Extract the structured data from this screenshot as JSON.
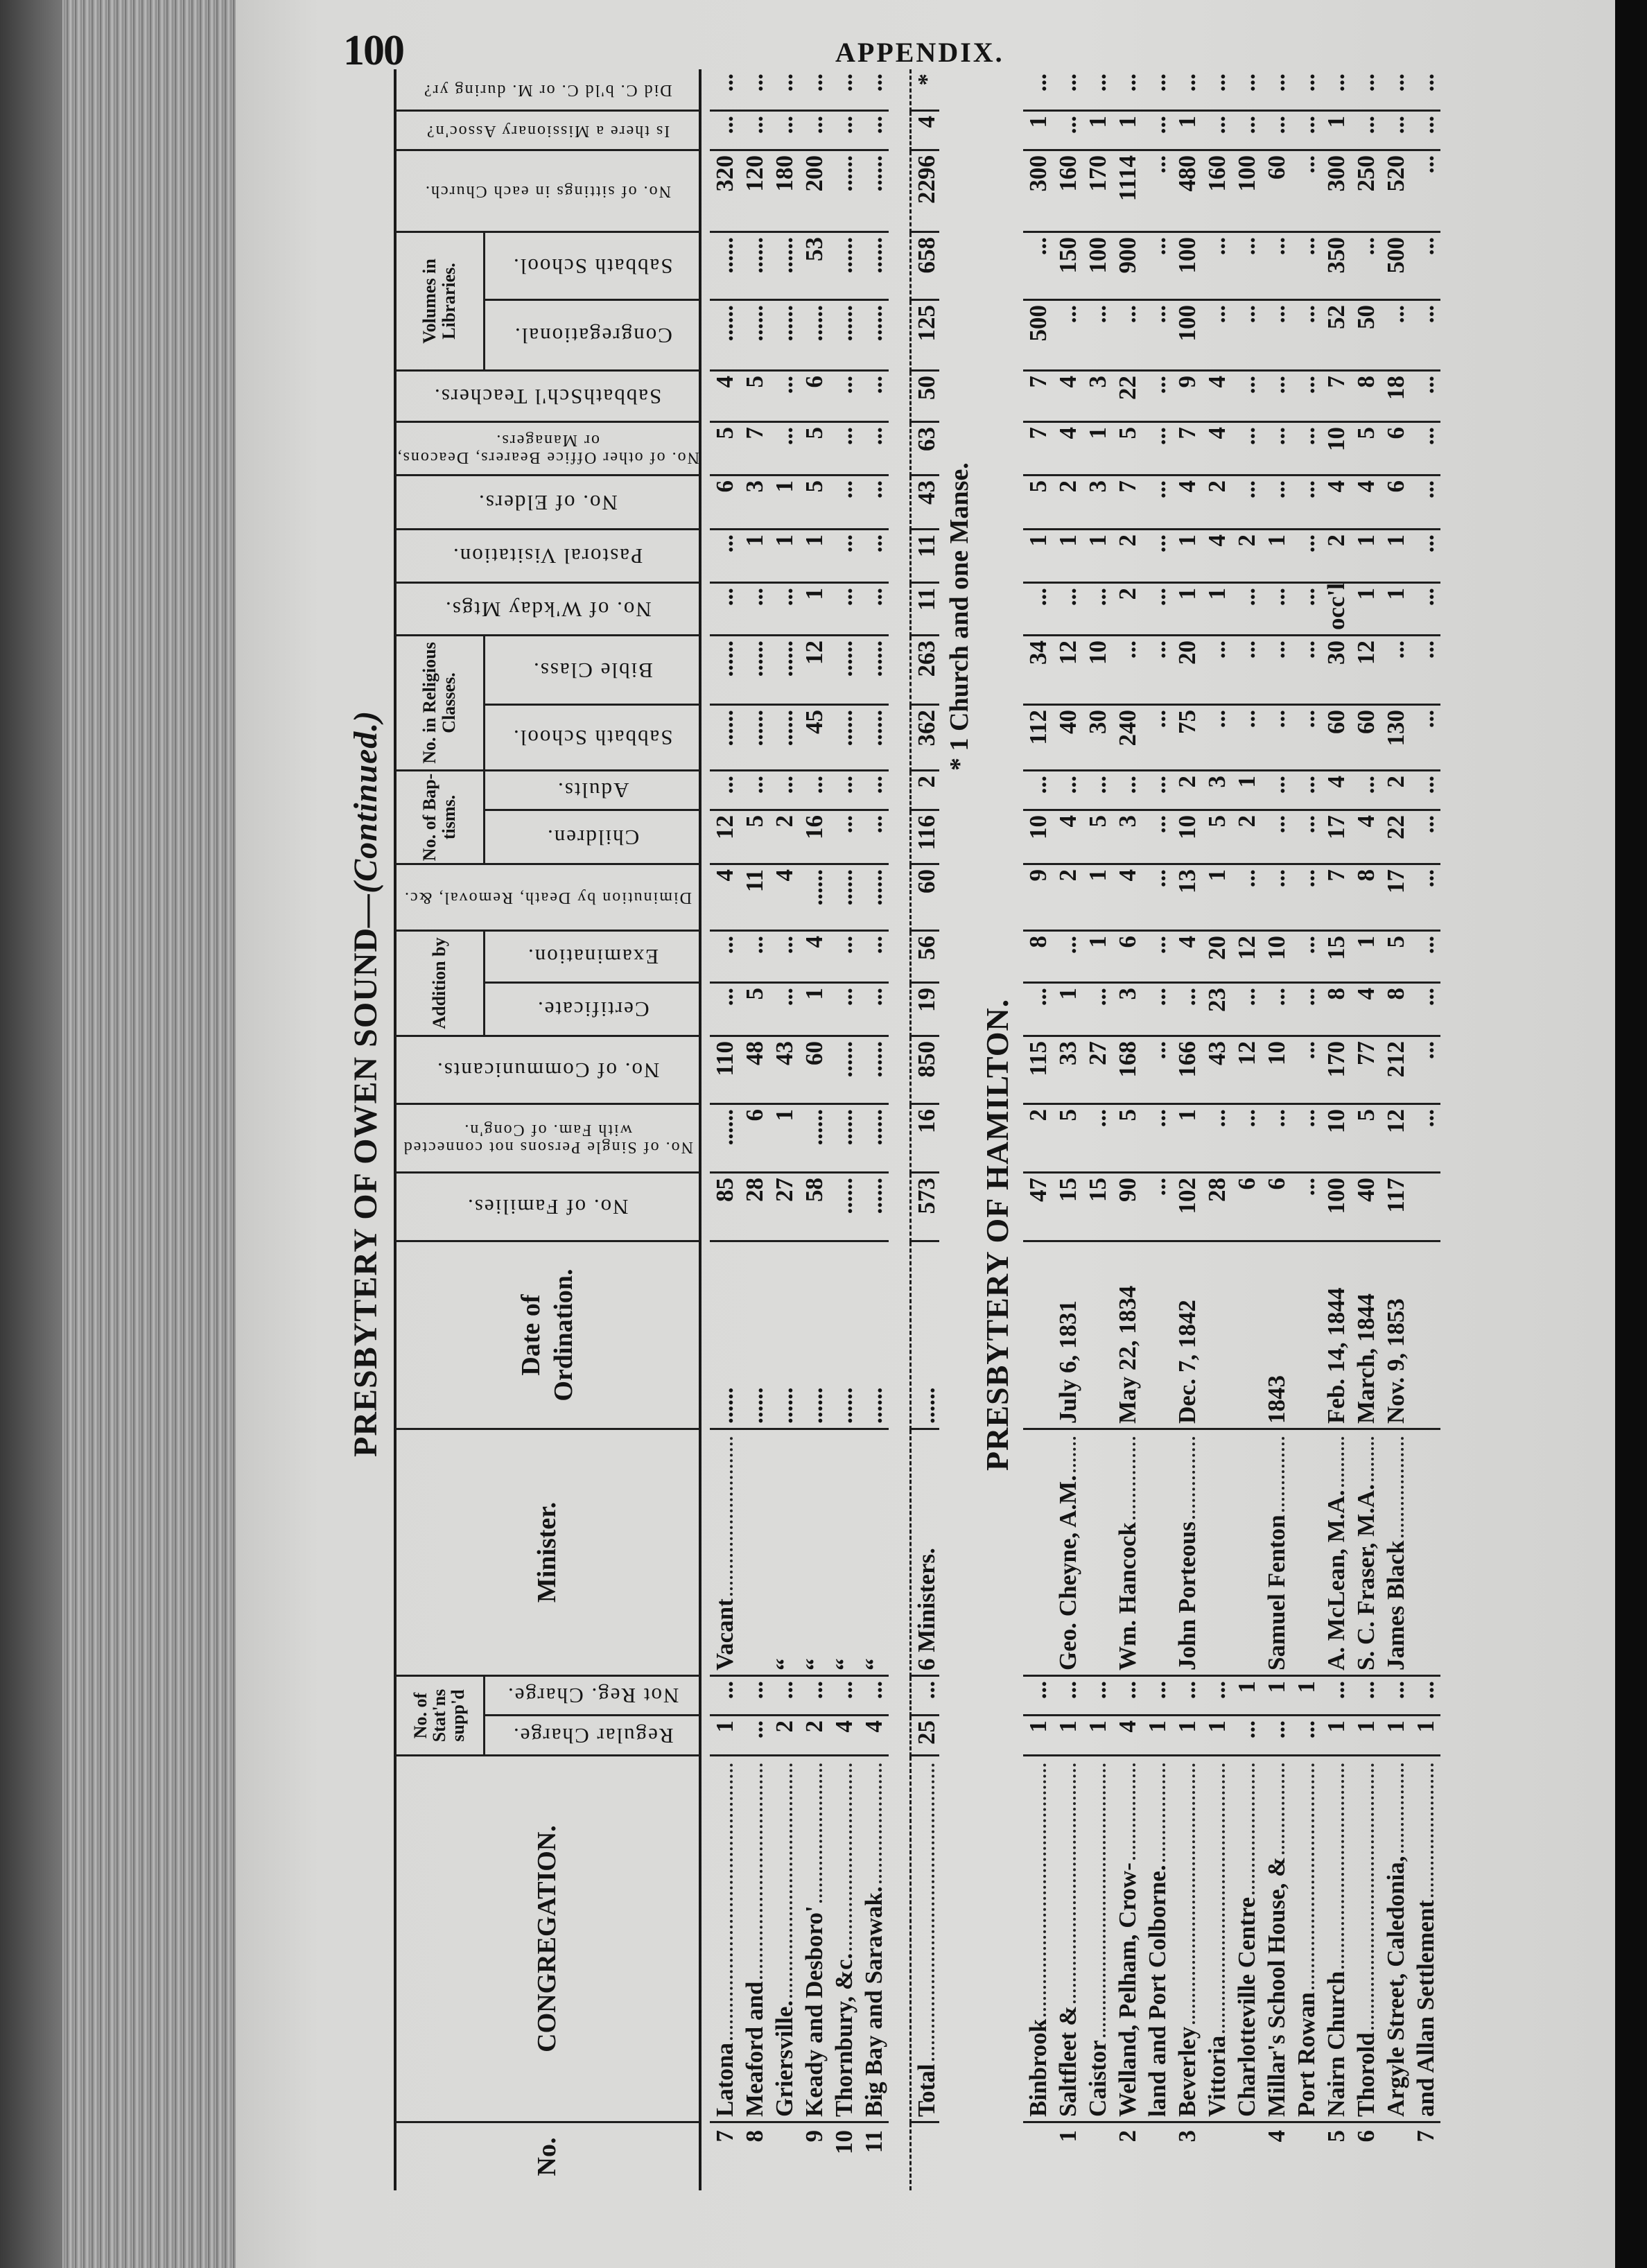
{
  "page": {
    "number": "100",
    "running_head": "APPENDIX."
  },
  "header": {
    "columns": [
      "No.",
      "CONGREGATION.",
      "Regular Charge.",
      "Not Reg. Charge.",
      "Minister.",
      "Date of Ordination.",
      "No. of Families.",
      "No. of Single Persons not connected with Fam. of Cong'n.",
      "No. of Communicants.",
      "Certificate.",
      "Examination.",
      "Diminution by Death, Removal, &c.",
      "Children.",
      "Adults.",
      "Sabbath School.",
      "Bible Class.",
      "No. of W'kday Mtgs.",
      "Pastoral Visitation.",
      "No. of Elders.",
      "No. of other Office Bearers, Deacons, or Managers.",
      "SabbathSch'l Teachers.",
      "Congregational.",
      "Sabbath School.",
      "No. of sittings in each Church.",
      "Is there a Missionary Assoc'n?",
      "Did C. b'ld C. or M. during yr?"
    ],
    "groups": [
      {
        "label": "No. of Stat'ns supp'd",
        "cols": [
          2,
          3
        ]
      },
      {
        "label": "Addition by",
        "cols": [
          9,
          10
        ]
      },
      {
        "label": "No. of Bap-tisms.",
        "cols": [
          12,
          13
        ]
      },
      {
        "label": "No. in Religious Classes.",
        "cols": [
          14,
          15
        ]
      },
      {
        "label": "Volumes in Libraries.",
        "cols": [
          21,
          22
        ]
      }
    ]
  },
  "owen_sound": {
    "title": "PRESBYTERY OF OWEN SOUND",
    "title_suffix": "—(Continued.)",
    "rows": [
      [
        "7",
        "Latona",
        "1",
        "...",
        "Vacant",
        "......",
        "85",
        "......",
        "110",
        "...",
        "...",
        "4",
        "12",
        "...",
        "......",
        "......",
        "...",
        "...",
        "6",
        "5",
        "4",
        "......",
        "......",
        "320",
        "...",
        "..."
      ],
      [
        "8",
        "Meaford and",
        "...",
        "...",
        "",
        "......",
        "28",
        "6",
        "48",
        "5",
        "...",
        "11",
        "5",
        "...",
        "......",
        "......",
        "...",
        "1",
        "3",
        "7",
        "5",
        "......",
        "......",
        "120",
        "...",
        "..."
      ],
      [
        "",
        "Griersville.",
        "2",
        "...",
        "“",
        "......",
        "27",
        "1",
        "43",
        "...",
        "...",
        "4",
        "2",
        "...",
        "......",
        "......",
        "...",
        "1",
        "1",
        "...",
        "...",
        "......",
        "......",
        "180",
        "...",
        "..."
      ],
      [
        "9",
        "Keady and Desboro'",
        "2",
        "...",
        "“",
        "......",
        "58",
        "......",
        "60",
        "1",
        "4",
        "......",
        "16",
        "...",
        "45",
        "12",
        "1",
        "1",
        "5",
        "5",
        "6",
        "......",
        "53",
        "200",
        "...",
        "..."
      ],
      [
        "10",
        "Thornbury, &c.",
        "4",
        "...",
        "“",
        "......",
        "......",
        "......",
        "......",
        "...",
        "...",
        "......",
        "...",
        "...",
        "......",
        "......",
        "...",
        "...",
        "...",
        "...",
        "...",
        "......",
        "......",
        "......",
        "...",
        "..."
      ],
      [
        "11",
        "Big Bay and Sarawak.",
        "4",
        "...",
        "“",
        "......",
        "......",
        "......",
        "......",
        "...",
        "...",
        "......",
        "...",
        "...",
        "......",
        "......",
        "...",
        "...",
        "...",
        "...",
        "...",
        "......",
        "......",
        "......",
        "...",
        "..."
      ]
    ],
    "total": [
      "",
      "Total",
      "25",
      "...",
      "6 Ministers.",
      "......",
      "573",
      "16",
      "850",
      "19",
      "56",
      "60",
      "116",
      "2",
      "362",
      "263",
      "11",
      "11",
      "43",
      "63",
      "50",
      "125",
      "658",
      "2296",
      "4",
      "*"
    ],
    "footnote": "* 1 Church and one Manse."
  },
  "hamilton": {
    "title": "PRESBYTERY OF HAMILTON.",
    "rows": [
      [
        "",
        "Binbrook",
        "1",
        "...",
        "",
        "",
        "47",
        "2",
        "115",
        "...",
        "8",
        "9",
        "10",
        "...",
        "112",
        "34",
        "...",
        "1",
        "5",
        "7",
        "7",
        "500",
        "...",
        "300",
        "1",
        "..."
      ],
      [
        "1",
        "Saltfleet &",
        "1",
        "...",
        "Geo. Cheyne, A.M.",
        "July 6, 1831",
        "15",
        "5",
        "33",
        "1",
        "...",
        "2",
        "4",
        "...",
        "40",
        "12",
        "...",
        "1",
        "2",
        "4",
        "4",
        "...",
        "150",
        "160",
        "...",
        "..."
      ],
      [
        "",
        "Caistor",
        "1",
        "...",
        "",
        "",
        "15",
        "...",
        "27",
        "...",
        "1",
        "1",
        "5",
        "...",
        "30",
        "10",
        "...",
        "1",
        "3",
        "1",
        "3",
        "...",
        "100",
        "170",
        "1",
        "..."
      ],
      [
        "2",
        "Welland, Pelham, Crow-",
        "4",
        "...",
        "Wm. Hancock",
        "May 22, 1834",
        "90",
        "5",
        "168",
        "3",
        "6",
        "4",
        "3",
        "...",
        "240",
        "...",
        "2",
        "2",
        "7",
        "5",
        "22",
        "...",
        "900",
        "1114",
        "1",
        "..."
      ],
      [
        "",
        "land and Port Colborne.",
        "1",
        "...",
        "",
        "",
        "...",
        "...",
        "...",
        "...",
        "...",
        "...",
        "...",
        "...",
        "...",
        "...",
        "...",
        "...",
        "...",
        "...",
        "...",
        "...",
        "...",
        "...",
        "...",
        "..."
      ],
      [
        "3",
        "Beverley",
        "1",
        "...",
        "John Porteous",
        "Dec. 7, 1842",
        "102",
        "1",
        "166",
        "...",
        "4",
        "13",
        "10",
        "2",
        "75",
        "20",
        "1",
        "1",
        "4",
        "7",
        "9",
        "100",
        "100",
        "480",
        "1",
        "..."
      ],
      [
        "",
        "Vittoria",
        "1",
        "...",
        "",
        "",
        "28",
        "...",
        "43",
        "23",
        "20",
        "1",
        "5",
        "3",
        "...",
        "...",
        "1",
        "4",
        "2",
        "4",
        "4",
        "...",
        "...",
        "160",
        "...",
        "..."
      ],
      [
        "",
        "Charlotteville Centre",
        "...",
        "1",
        "",
        "",
        "6",
        "...",
        "12",
        "...",
        "12",
        "...",
        "2",
        "1",
        "...",
        "...",
        "...",
        "2",
        "...",
        "...",
        "...",
        "...",
        "...",
        "100",
        "...",
        "..."
      ],
      [
        "4",
        "Millar's School House, &",
        "...",
        "1",
        "Samuel Fenton",
        "1843",
        "6",
        "...",
        "10",
        "...",
        "10",
        "...",
        "...",
        "...",
        "...",
        "...",
        "...",
        "1",
        "...",
        "...",
        "...",
        "...",
        "...",
        "60",
        "...",
        "..."
      ],
      [
        "",
        "Port Rowan",
        "...",
        "1",
        "",
        "",
        "...",
        "...",
        "...",
        "...",
        "...",
        "...",
        "...",
        "...",
        "...",
        "...",
        "...",
        "...",
        "...",
        "...",
        "...",
        "...",
        "...",
        "...",
        "...",
        "..."
      ],
      [
        "5",
        "Nairn Church",
        "1",
        "...",
        "A. McLean, M.A.",
        "Feb. 14, 1844",
        "100",
        "10",
        "170",
        "8",
        "15",
        "7",
        "17",
        "4",
        "60",
        "30",
        "occ'l",
        "2",
        "4",
        "10",
        "7",
        "52",
        "350",
        "300",
        "1",
        "..."
      ],
      [
        "6",
        "Thorold",
        "1",
        "...",
        "S. C. Fraser, M.A.",
        "March, 1844",
        "40",
        "5",
        "77",
        "4",
        "1",
        "8",
        "4",
        "...",
        "60",
        "12",
        "1",
        "1",
        "4",
        "5",
        "8",
        "50",
        "...",
        "250",
        "...",
        "..."
      ],
      [
        "",
        "Argyle Street, Caledonia,",
        "1",
        "...",
        "James Black",
        "Nov. 9, 1853",
        "117",
        "12",
        "212",
        "8",
        "5",
        "17",
        "22",
        "2",
        "130",
        "...",
        "1",
        "1",
        "6",
        "6",
        "18",
        "...",
        "500",
        "520",
        "...",
        "..."
      ],
      [
        "7",
        "and Allan Settlement",
        "1",
        "...",
        "",
        "",
        "",
        "...",
        "...",
        "...",
        "...",
        "...",
        "...",
        "...",
        "...",
        "...",
        "...",
        "...",
        "...",
        "...",
        "...",
        "...",
        "...",
        "...",
        "...",
        "..."
      ]
    ]
  }
}
